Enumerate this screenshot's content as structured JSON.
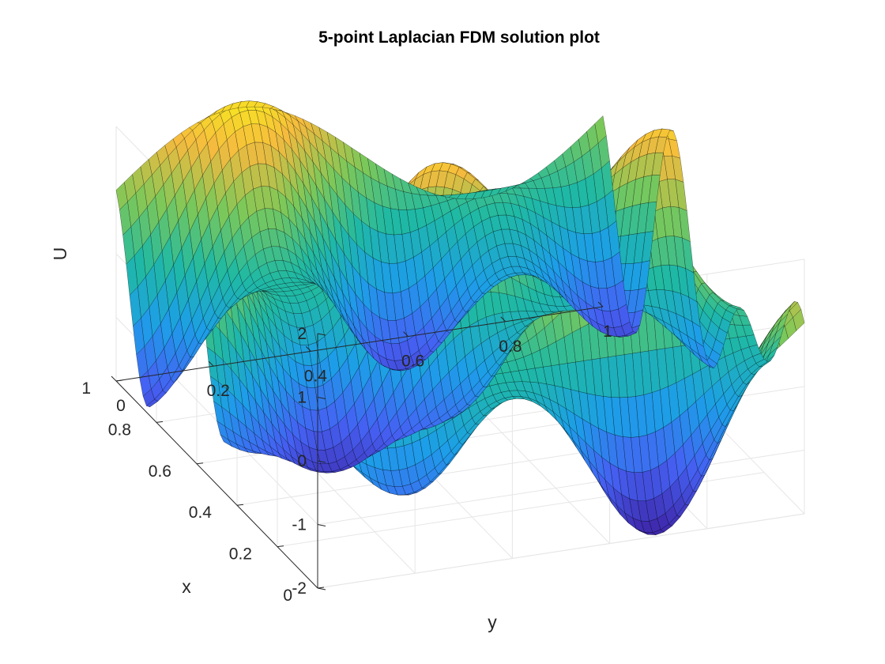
{
  "chart_data": {
    "type": "surface",
    "title": "5-point Laplacian FDM solution plot",
    "xlabel": "x",
    "ylabel": "y",
    "zlabel": "U",
    "xlim": [
      0,
      1
    ],
    "ylim": [
      0,
      1
    ],
    "zlim": [
      -2,
      2
    ],
    "x_ticks": [
      {
        "value": 0,
        "label": "0"
      },
      {
        "value": 0.2,
        "label": "0.2"
      },
      {
        "value": 0.4,
        "label": "0.4"
      },
      {
        "value": 0.6,
        "label": "0.6"
      },
      {
        "value": 0.8,
        "label": "0.8"
      },
      {
        "value": 1,
        "label": "1"
      }
    ],
    "y_ticks": [
      {
        "value": 0,
        "label": "0"
      },
      {
        "value": 0.2,
        "label": "0.2"
      },
      {
        "value": 0.4,
        "label": "0.4"
      },
      {
        "value": 0.6,
        "label": "0.6"
      },
      {
        "value": 0.8,
        "label": "0.8"
      },
      {
        "value": 1,
        "label": "1"
      }
    ],
    "z_ticks": [
      {
        "value": -2,
        "label": "-2"
      },
      {
        "value": -1,
        "label": "-1"
      },
      {
        "value": 0,
        "label": "0"
      },
      {
        "value": 1,
        "label": "1"
      },
      {
        "value": 2,
        "label": "2"
      }
    ],
    "grid": true,
    "colormap": "parula",
    "colormap_stops": [
      "#3e26a8",
      "#4561f3",
      "#1d9ee8",
      "#1fb9a4",
      "#7cc859",
      "#f5ba3e",
      "#f9fb15"
    ],
    "mesh_color": "#000000",
    "surface_function": "U(x,y) = cos(2*pi*x)*sin(2*pi*y) + sin(4*pi*x)*cos(4*pi*y) + cos(6*pi*x)",
    "grid_points": 60
  }
}
